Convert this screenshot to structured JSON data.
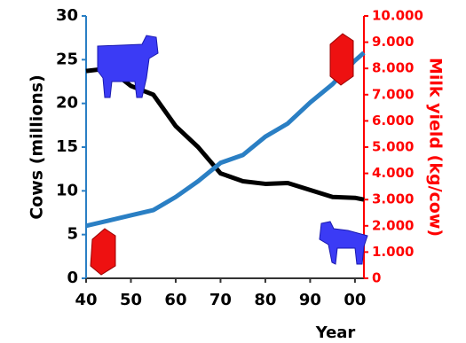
{
  "chart_data": {
    "type": "line",
    "x_label": "Year",
    "y_label": "Cows (millions)",
    "y2_label": "Milk yield (kg/cow)",
    "x": [
      40,
      45,
      50,
      55,
      60,
      65,
      70,
      75,
      80,
      85,
      90,
      95,
      100,
      102
    ],
    "series": [
      {
        "name": "Cows",
        "color": "#000000",
        "axis": "y",
        "values": [
          23.7,
          24.0,
          22.0,
          21.0,
          17.4,
          15.0,
          12.0,
          11.1,
          10.8,
          10.9,
          10.1,
          9.3,
          9.2,
          9.0
        ]
      },
      {
        "name": "Milk yield",
        "color": "#2a7fc4",
        "axis": "y2",
        "values": [
          2000,
          2200,
          2400,
          2600,
          3100,
          3700,
          4400,
          4700,
          5400,
          5900,
          6700,
          7400,
          8300,
          8600
        ]
      }
    ],
    "xlim": [
      40,
      102
    ],
    "xticks": [
      40,
      50,
      60,
      70,
      80,
      90,
      {
        "value": 100,
        "label": "00"
      }
    ],
    "ylim": [
      0,
      30
    ],
    "yticks": [
      0,
      5,
      10,
      15,
      20,
      25,
      30
    ],
    "y2lim": [
      0,
      10000
    ],
    "y2ticks": [
      0,
      {
        "value": 1000,
        "label": "1.000"
      },
      {
        "value": 2000,
        "label": "2.000"
      },
      {
        "value": 3000,
        "label": "3.000"
      },
      {
        "value": 4000,
        "label": "4.000"
      },
      {
        "value": 5000,
        "label": "5.000"
      },
      {
        "value": 6000,
        "label": "6.000"
      },
      {
        "value": 7000,
        "label": "7.000"
      },
      {
        "value": 8000,
        "label": "8.000"
      },
      {
        "value": 9000,
        "label": "9.000"
      },
      {
        "value": 10000,
        "label": "10.000"
      }
    ]
  }
}
